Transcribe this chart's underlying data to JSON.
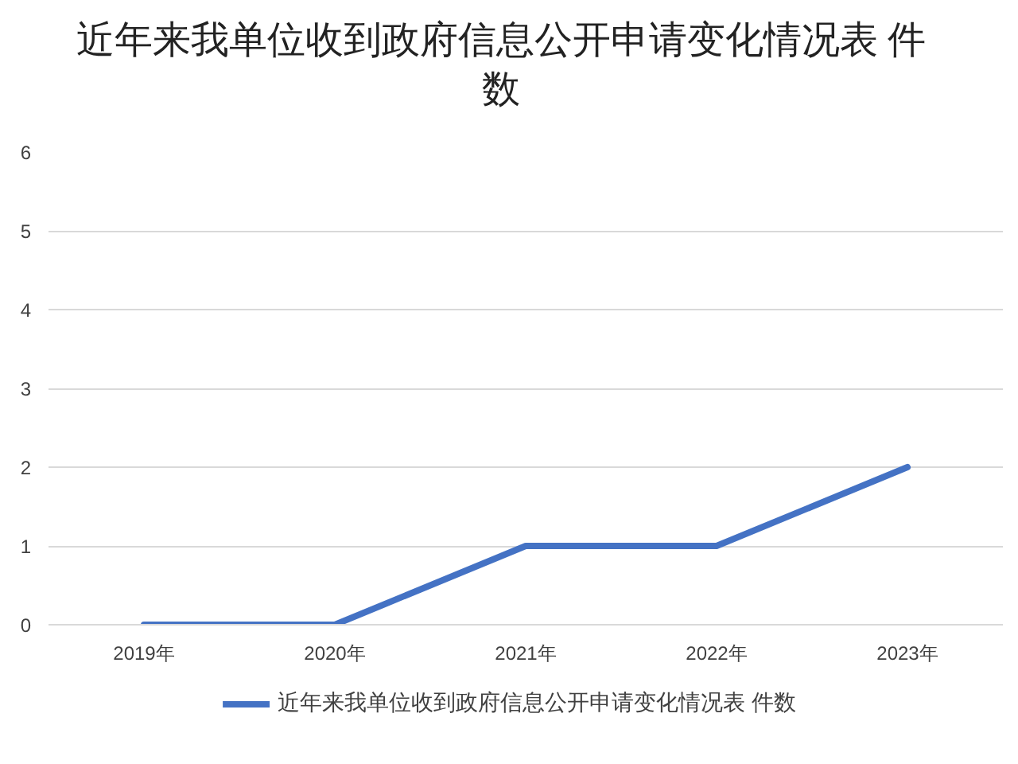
{
  "chart_data": {
    "type": "line",
    "title": "近年来我单位收到政府信息公开申请变化情况表 件数",
    "categories": [
      "2019年",
      "2020年",
      "2021年",
      "2022年",
      "2023年"
    ],
    "series": [
      {
        "name": "近年来我单位收到政府信息公开申请变化情况表 件数",
        "color": "#4472c4",
        "values": [
          0,
          0,
          1,
          1,
          2
        ]
      }
    ],
    "ylim": [
      0,
      6
    ],
    "yticks": [
      0,
      1,
      2,
      3,
      4,
      5,
      6
    ],
    "grid": "y",
    "legend": "bottom",
    "marker": "none",
    "line_style": "solid"
  }
}
